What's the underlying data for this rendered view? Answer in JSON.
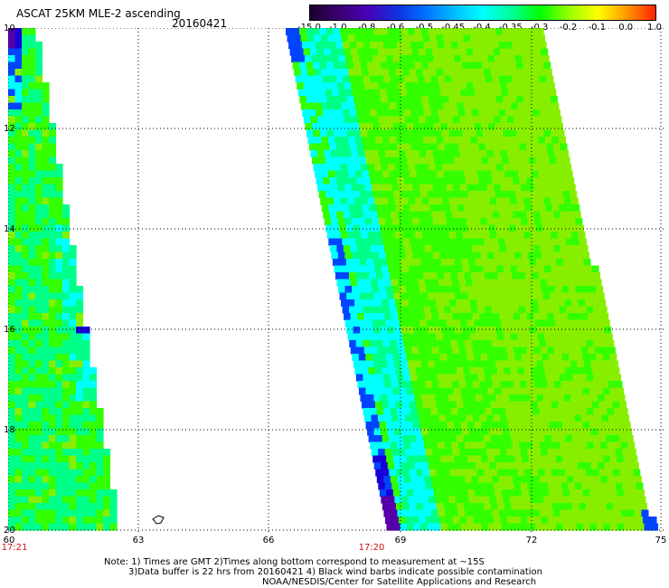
{
  "header": {
    "title": "ASCAT 25KM MLE-2 ascending",
    "date": "20160421"
  },
  "colorbar": {
    "labels": [
      "-15.0",
      "-1.0",
      "-0.8",
      "-0.6",
      "-0.5",
      "-0.45",
      "-0.4",
      "-0.35",
      "-0.3",
      "-0.2",
      "-0.1",
      "0.0",
      "1.0"
    ],
    "colors": [
      "#1a0030",
      "#3a0070",
      "#4b00b8",
      "#1030e0",
      "#0070ff",
      "#00bbff",
      "#00ffff",
      "#00ff99",
      "#00ff00",
      "#99ff00",
      "#ffff00",
      "#ff9900",
      "#ff2200"
    ]
  },
  "map": {
    "lon_labels": [
      "60",
      "63",
      "66",
      "69",
      "72",
      "75"
    ],
    "lat_labels": [
      "10",
      "12",
      "14",
      "16",
      "18",
      "20"
    ],
    "time_labels": [
      "17:21",
      "17:20"
    ],
    "swath_colors": {
      "green": "#33ff00",
      "yellow_green": "#88ee00",
      "cyan": "#00ffff",
      "sea_green": "#00ff88",
      "blue": "#0044ff",
      "deep_blue": "#1800d8",
      "purple": "#5500aa"
    }
  },
  "footer": {
    "note1": "Note: 1) Times are GMT 2)Times along bottom correspond to measurement at ~15S",
    "note2": "3)Data buffer is 22 hrs from 20160421 4) Black wind barbs indicate possible contamination",
    "credit": "NOAA/NESDIS/Center for Satellite Applications and Research"
  }
}
